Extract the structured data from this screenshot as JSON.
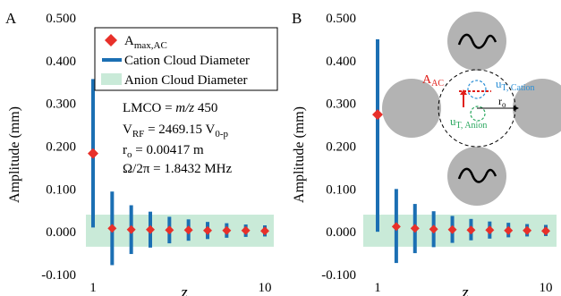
{
  "chart_data": [
    {
      "type": "scatter",
      "panel": "A",
      "title": "",
      "xlabel": "z",
      "ylabel": "Amplitude (mm)",
      "ylim": [
        -0.1,
        0.5
      ],
      "y_ticks": [
        "-0.100",
        "0.000",
        "0.100",
        "0.200",
        "0.300",
        "0.400",
        "0.500"
      ],
      "x_ticks": [
        "1",
        "10"
      ],
      "anion_band": [
        -0.035,
        0.04
      ],
      "x": [
        1,
        2,
        3,
        4,
        5,
        6,
        7,
        8,
        9,
        10
      ],
      "series": [
        {
          "name": "A",
          "name_sub": "max,AC",
          "marker": "diamond",
          "color": "#e8302a",
          "values": [
            0.183,
            0.008,
            0.005,
            0.005,
            0.004,
            0.004,
            0.003,
            0.003,
            0.003,
            0.002
          ]
        },
        {
          "name": "Cation Cloud Diameter",
          "marker": "bar",
          "color": "#1b6fb3",
          "low": [
            0.01,
            -0.078,
            -0.052,
            -0.037,
            -0.027,
            -0.021,
            -0.017,
            -0.014,
            -0.012,
            -0.011
          ],
          "high": [
            0.357,
            0.094,
            0.062,
            0.047,
            0.035,
            0.029,
            0.023,
            0.02,
            0.017,
            0.015
          ]
        }
      ],
      "legend": [
        {
          "main": "A",
          "sub": "max,AC",
          "kind": "diamond"
        },
        {
          "main": "Cation Cloud Diameter",
          "sub": "",
          "kind": "bar"
        },
        {
          "main": "Anion Cloud Diameter",
          "sub": "",
          "kind": "band"
        }
      ],
      "params": {
        "lmco_pre": "LMCO = ",
        "lmco_ital": "m/z",
        "lmco_post": " 450",
        "vrf_main": "V",
        "vrf_sub": "RF",
        "vrf_mid": " = 2469.15 V",
        "vrf_sub2": "0-p",
        "r0_main": "r",
        "r0_sub": "o",
        "r0_post": " = 0.00417 m",
        "omega": "Ω/2π = 1.8432 MHz"
      }
    },
    {
      "type": "scatter",
      "panel": "B",
      "title": "",
      "xlabel": "z",
      "ylabel": "Amplitude (mm)",
      "ylim": [
        -0.1,
        0.5
      ],
      "y_ticks": [
        "-0.100",
        "0.000",
        "0.100",
        "0.200",
        "0.300",
        "0.400",
        "0.500"
      ],
      "x_ticks": [
        "1",
        "10"
      ],
      "anion_band": [
        -0.035,
        0.04
      ],
      "x": [
        1,
        2,
        3,
        4,
        5,
        6,
        7,
        8,
        9,
        10
      ],
      "series": [
        {
          "name": "A",
          "name_sub": "max,AC",
          "marker": "diamond",
          "color": "#e8302a",
          "values": [
            0.274,
            0.012,
            0.008,
            0.006,
            0.005,
            0.004,
            0.004,
            0.003,
            0.003,
            0.002
          ]
        },
        {
          "name": "Cation Cloud Diameter",
          "marker": "bar",
          "color": "#1b6fb3",
          "low": [
            0.0,
            -0.073,
            -0.05,
            -0.036,
            -0.026,
            -0.02,
            -0.016,
            -0.013,
            -0.011,
            -0.01
          ],
          "high": [
            0.45,
            0.1,
            0.065,
            0.048,
            0.037,
            0.03,
            0.024,
            0.021,
            0.018,
            0.016
          ]
        }
      ],
      "annotations": {
        "a_main": "A",
        "a_sub": "AC",
        "ut_cation_main": "u",
        "ut_cation_sub": "T, Cation",
        "ut_anion_main": "u",
        "ut_anion_sub": "T, Anion",
        "r0_main": "r",
        "r0_sub": "o"
      }
    }
  ],
  "colors": {
    "diamond": "#e8302a",
    "cation": "#1b6fb3",
    "anion_band": "#c9ead8",
    "electrode": "#b3b3b3",
    "ut_cation": "#2a8fd6",
    "ut_anion": "#2ca860"
  },
  "icons": [
    "electrode-rod",
    "sine-wave-icon"
  ]
}
